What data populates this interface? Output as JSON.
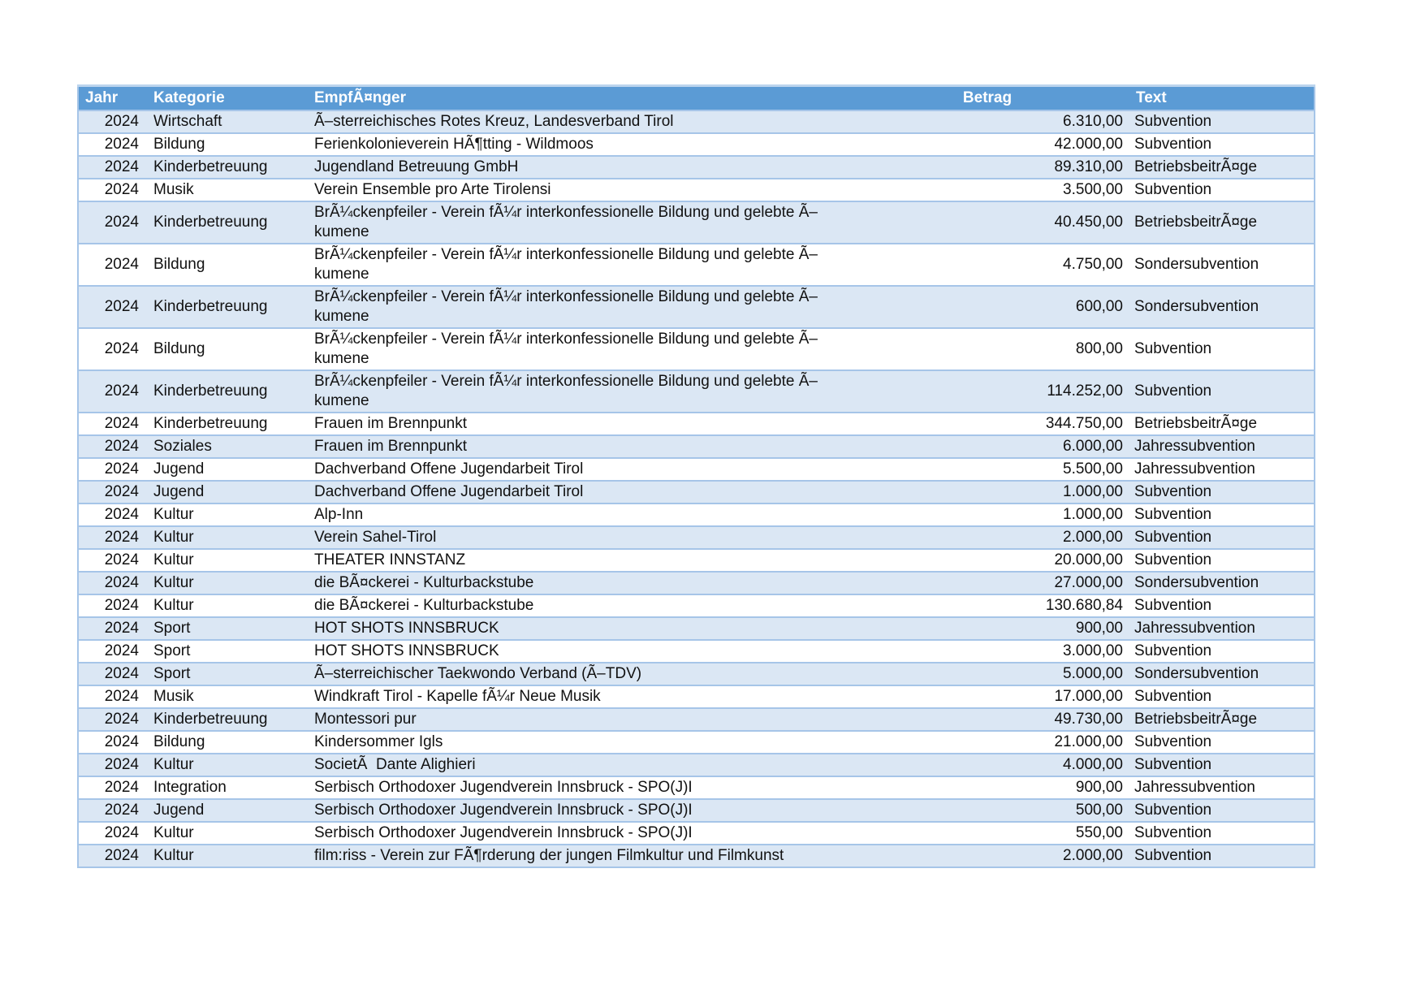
{
  "colors": {
    "header_bg": "#5b9bd5",
    "header_text": "#ffffff",
    "band_bg": "#dbe7f4",
    "row_bg": "#ffffff",
    "border": "#a6c5e8",
    "top_accent": "#bcd5ee"
  },
  "table": {
    "columns": [
      {
        "key": "jahr",
        "label": "Jahr"
      },
      {
        "key": "kategorie",
        "label": "Kategorie"
      },
      {
        "key": "empfaenger",
        "label": "EmpfÃ¤nger"
      },
      {
        "key": "betrag",
        "label": "Betrag"
      },
      {
        "key": "text",
        "label": "Text"
      }
    ],
    "rows": [
      {
        "jahr": "2024",
        "kategorie": "Wirtschaft",
        "empfaenger": "Ã–sterreichisches Rotes Kreuz, Landesverband Tirol",
        "betrag": "6.310,00",
        "text": "Subvention"
      },
      {
        "jahr": "2024",
        "kategorie": "Bildung",
        "empfaenger": "Ferienkolonieverein HÃ¶tting - Wildmoos",
        "betrag": "42.000,00",
        "text": "Subvention"
      },
      {
        "jahr": "2024",
        "kategorie": "Kinderbetreuung",
        "empfaenger": "Jugendland Betreuung GmbH",
        "betrag": "89.310,00",
        "text": "BetriebsbeitrÃ¤ge"
      },
      {
        "jahr": "2024",
        "kategorie": "Musik",
        "empfaenger": "Verein Ensemble pro Arte Tirolensi",
        "betrag": "3.500,00",
        "text": "Subvention"
      },
      {
        "jahr": "2024",
        "kategorie": "Kinderbetreuung",
        "empfaenger": "BrÃ¼ckenpfeiler - Verein fÃ¼r interkonfessionelle Bildung und gelebte Ã–kumene",
        "betrag": "40.450,00",
        "text": "BetriebsbeitrÃ¤ge"
      },
      {
        "jahr": "2024",
        "kategorie": "Bildung",
        "empfaenger": "BrÃ¼ckenpfeiler - Verein fÃ¼r interkonfessionelle Bildung und gelebte Ã–kumene",
        "betrag": "4.750,00",
        "text": "Sondersubvention"
      },
      {
        "jahr": "2024",
        "kategorie": "Kinderbetreuung",
        "empfaenger": "BrÃ¼ckenpfeiler - Verein fÃ¼r interkonfessionelle Bildung und gelebte Ã–kumene",
        "betrag": "600,00",
        "text": "Sondersubvention"
      },
      {
        "jahr": "2024",
        "kategorie": "Bildung",
        "empfaenger": "BrÃ¼ckenpfeiler - Verein fÃ¼r interkonfessionelle Bildung und gelebte Ã–kumene",
        "betrag": "800,00",
        "text": "Subvention"
      },
      {
        "jahr": "2024",
        "kategorie": "Kinderbetreuung",
        "empfaenger": "BrÃ¼ckenpfeiler - Verein fÃ¼r interkonfessionelle Bildung und gelebte Ã–kumene",
        "betrag": "114.252,00",
        "text": "Subvention"
      },
      {
        "jahr": "2024",
        "kategorie": "Kinderbetreuung",
        "empfaenger": "Frauen im Brennpunkt",
        "betrag": "344.750,00",
        "text": "BetriebsbeitrÃ¤ge"
      },
      {
        "jahr": "2024",
        "kategorie": "Soziales",
        "empfaenger": "Frauen im Brennpunkt",
        "betrag": "6.000,00",
        "text": "Jahressubvention"
      },
      {
        "jahr": "2024",
        "kategorie": "Jugend",
        "empfaenger": "Dachverband Offene Jugendarbeit Tirol",
        "betrag": "5.500,00",
        "text": "Jahressubvention"
      },
      {
        "jahr": "2024",
        "kategorie": "Jugend",
        "empfaenger": "Dachverband Offene Jugendarbeit Tirol",
        "betrag": "1.000,00",
        "text": "Subvention"
      },
      {
        "jahr": "2024",
        "kategorie": "Kultur",
        "empfaenger": "Alp-Inn",
        "betrag": "1.000,00",
        "text": "Subvention"
      },
      {
        "jahr": "2024",
        "kategorie": "Kultur",
        "empfaenger": "Verein Sahel-Tirol",
        "betrag": "2.000,00",
        "text": "Subvention"
      },
      {
        "jahr": "2024",
        "kategorie": "Kultur",
        "empfaenger": "THEATER INNSTANZ",
        "betrag": "20.000,00",
        "text": "Subvention"
      },
      {
        "jahr": "2024",
        "kategorie": "Kultur",
        "empfaenger": "die BÃ¤ckerei - Kulturbackstube",
        "betrag": "27.000,00",
        "text": "Sondersubvention"
      },
      {
        "jahr": "2024",
        "kategorie": "Kultur",
        "empfaenger": "die BÃ¤ckerei - Kulturbackstube",
        "betrag": "130.680,84",
        "text": "Subvention"
      },
      {
        "jahr": "2024",
        "kategorie": "Sport",
        "empfaenger": "HOT SHOTS INNSBRUCK",
        "betrag": "900,00",
        "text": "Jahressubvention"
      },
      {
        "jahr": "2024",
        "kategorie": "Sport",
        "empfaenger": "HOT SHOTS INNSBRUCK",
        "betrag": "3.000,00",
        "text": "Subvention"
      },
      {
        "jahr": "2024",
        "kategorie": "Sport",
        "empfaenger": "Ã–sterreichischer Taekwondo Verband (Ã–TDV)",
        "betrag": "5.000,00",
        "text": "Sondersubvention"
      },
      {
        "jahr": "2024",
        "kategorie": "Musik",
        "empfaenger": "Windkraft Tirol - Kapelle fÃ¼r Neue Musik",
        "betrag": "17.000,00",
        "text": "Subvention"
      },
      {
        "jahr": "2024",
        "kategorie": "Kinderbetreuung",
        "empfaenger": "Montessori pur",
        "betrag": "49.730,00",
        "text": "BetriebsbeitrÃ¤ge"
      },
      {
        "jahr": "2024",
        "kategorie": "Bildung",
        "empfaenger": "Kindersommer Igls",
        "betrag": "21.000,00",
        "text": "Subvention"
      },
      {
        "jahr": "2024",
        "kategorie": "Kultur",
        "empfaenger": "SocietÃ  Dante Alighieri",
        "betrag": "4.000,00",
        "text": "Subvention"
      },
      {
        "jahr": "2024",
        "kategorie": "Integration",
        "empfaenger": "Serbisch Orthodoxer Jugendverein Innsbruck - SPO(J)I",
        "betrag": "900,00",
        "text": "Jahressubvention"
      },
      {
        "jahr": "2024",
        "kategorie": "Jugend",
        "empfaenger": "Serbisch Orthodoxer Jugendverein Innsbruck - SPO(J)I",
        "betrag": "500,00",
        "text": "Subvention"
      },
      {
        "jahr": "2024",
        "kategorie": "Kultur",
        "empfaenger": "Serbisch Orthodoxer Jugendverein Innsbruck - SPO(J)I",
        "betrag": "550,00",
        "text": "Subvention"
      },
      {
        "jahr": "2024",
        "kategorie": "Kultur",
        "empfaenger": "film:riss - Verein zur FÃ¶rderung der jungen Filmkultur und Filmkunst",
        "betrag": "2.000,00",
        "text": "Subvention"
      }
    ]
  }
}
